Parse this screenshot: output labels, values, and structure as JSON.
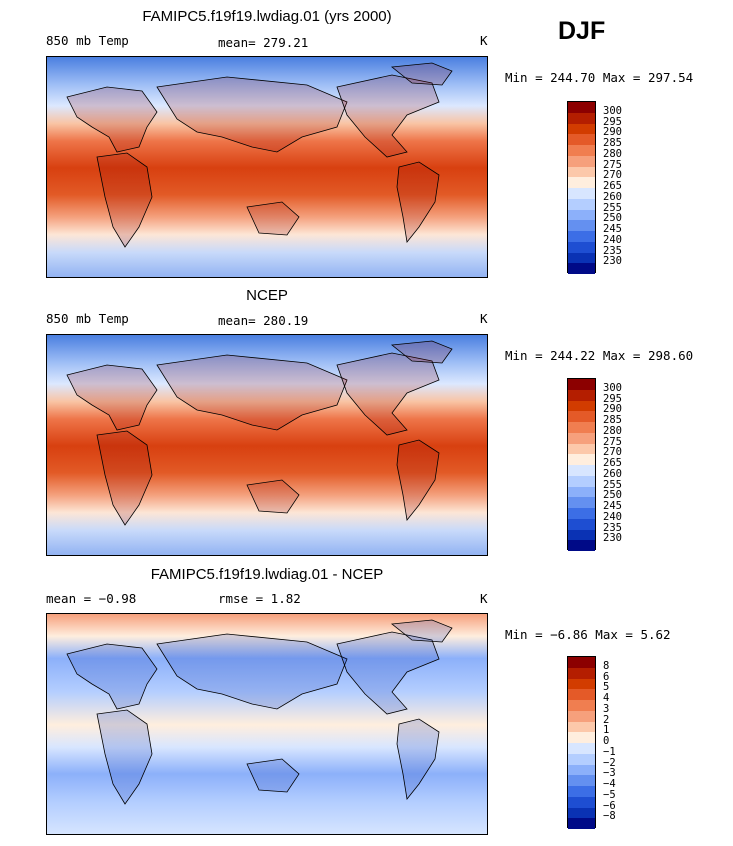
{
  "season": "DJF",
  "panels": [
    {
      "title": "FAMIPC5.f19f19.lwdiag.01 (yrs 2000)",
      "left_label": "850 mb Temp",
      "stat_label": "mean= 279.21",
      "units": "K",
      "minmax": "Min = 244.70 Max = 297.54",
      "colorbar": {
        "colors": [
          "#8c0000",
          "#b41e00",
          "#d23c00",
          "#e45a28",
          "#f07e50",
          "#f6a07c",
          "#fcc8aa",
          "#ffeede",
          "#d8e6ff",
          "#b4ceff",
          "#8cb0fa",
          "#6490f0",
          "#3c6ee6",
          "#1e4ed2",
          "#0a32b4",
          "#000a87"
        ],
        "labels": [
          "300",
          "295",
          "290",
          "285",
          "280",
          "275",
          "270",
          "265",
          "260",
          "255",
          "250",
          "245",
          "240",
          "235",
          "230"
        ]
      }
    },
    {
      "title": "NCEP",
      "left_label": "850 mb Temp",
      "stat_label": "mean= 280.19",
      "units": "K",
      "minmax": "Min = 244.22 Max = 298.60",
      "colorbar": {
        "colors": [
          "#8c0000",
          "#b41e00",
          "#d23c00",
          "#e45a28",
          "#f07e50",
          "#f6a07c",
          "#fcc8aa",
          "#ffeede",
          "#d8e6ff",
          "#b4ceff",
          "#8cb0fa",
          "#6490f0",
          "#3c6ee6",
          "#1e4ed2",
          "#0a32b4",
          "#000a87"
        ],
        "labels": [
          "300",
          "295",
          "290",
          "285",
          "280",
          "275",
          "270",
          "265",
          "260",
          "255",
          "250",
          "245",
          "240",
          "235",
          "230"
        ]
      }
    },
    {
      "title": "FAMIPC5.f19f19.lwdiag.01 - NCEP",
      "left_label": "mean =  −0.98",
      "stat_label": "rmse =   1.82",
      "units": "K",
      "minmax": "Min =  −6.86 Max =   5.62",
      "colorbar": {
        "colors": [
          "#8c0000",
          "#b41e00",
          "#d23c00",
          "#e45a28",
          "#f07e50",
          "#f6a07c",
          "#fcc8aa",
          "#ffeede",
          "#d8e6ff",
          "#b4ceff",
          "#8cb0fa",
          "#6490f0",
          "#3c6ee6",
          "#1e4ed2",
          "#0a32b4",
          "#000a87"
        ],
        "labels": [
          "8",
          "6",
          "5",
          "4",
          "3",
          "2",
          "1",
          "0",
          "−1",
          "−2",
          "−3",
          "−4",
          "−5",
          "−6",
          "−8"
        ]
      }
    }
  ]
}
